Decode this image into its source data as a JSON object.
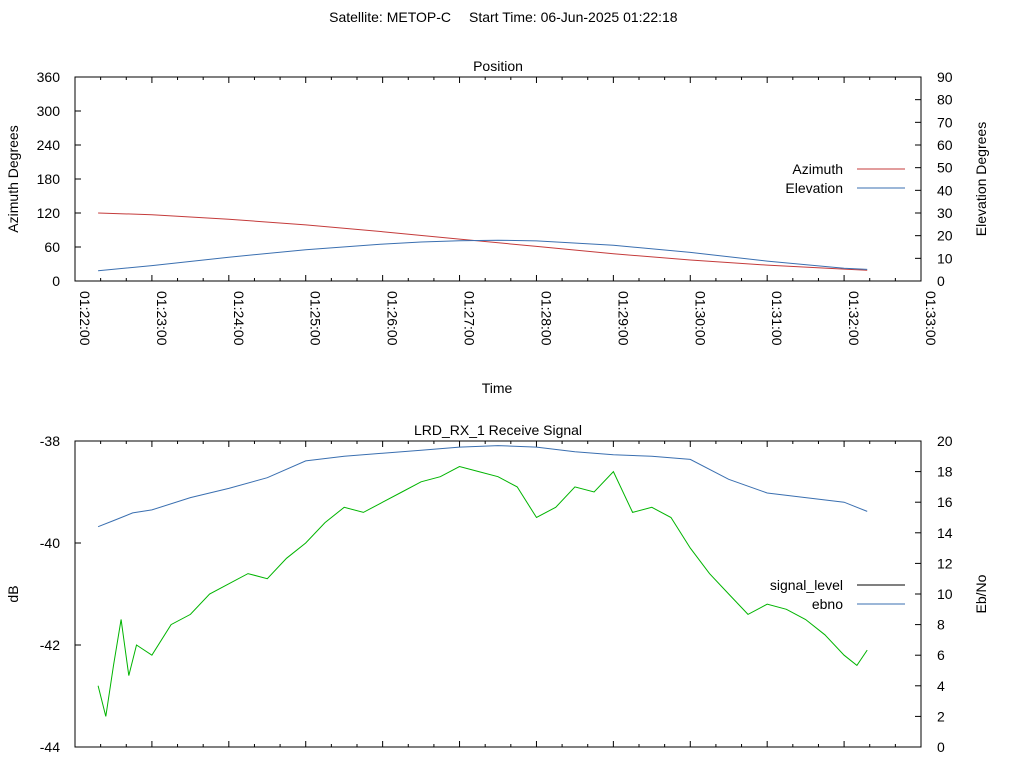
{
  "header": {
    "satellite": "Satellite: METOP-C",
    "start_time": "Start Time: 06-Jun-2025 01:22:18"
  },
  "colors": {
    "azimuth": "#c43b3b",
    "elevation": "#3a6fb0",
    "signal_level": "#00b400",
    "signal_level_legend": "#000000",
    "ebno": "#3a6fb0"
  },
  "chart_data": [
    {
      "type": "line",
      "title": "Position",
      "xlabel": "Time",
      "ylabel": "Azimuth Degrees",
      "y2label": "Elevation Degrees",
      "xlim": [
        "01:22:00",
        "01:33:00"
      ],
      "ylim": [
        0,
        360
      ],
      "y2lim": [
        0,
        90
      ],
      "x_ticks": [
        "01:22:00",
        "01:23:00",
        "01:24:00",
        "01:25:00",
        "01:26:00",
        "01:27:00",
        "01:28:00",
        "01:29:00",
        "01:30:00",
        "01:31:00",
        "01:32:00",
        "01:33:00"
      ],
      "y_ticks": [
        "0",
        "60",
        "120",
        "180",
        "240",
        "300",
        "360"
      ],
      "y2_ticks": [
        "0",
        "10",
        "20",
        "30",
        "40",
        "50",
        "60",
        "70",
        "80",
        "90"
      ],
      "legend": "right",
      "series": [
        {
          "name": "Azimuth",
          "axis": "y",
          "x": [
            "01:22:18",
            "01:23:00",
            "01:24:00",
            "01:25:00",
            "01:26:00",
            "01:27:00",
            "01:28:00",
            "01:29:00",
            "01:30:00",
            "01:31:00",
            "01:32:00",
            "01:32:18"
          ],
          "values": [
            120,
            117,
            109,
            99,
            87,
            74,
            61,
            48,
            37,
            28,
            21,
            19
          ]
        },
        {
          "name": "Elevation",
          "axis": "y2",
          "x": [
            "01:22:18",
            "01:23:00",
            "01:24:00",
            "01:25:00",
            "01:26:00",
            "01:26:30",
            "01:27:00",
            "01:27:30",
            "01:28:00",
            "01:29:00",
            "01:30:00",
            "01:31:00",
            "01:32:00",
            "01:32:18"
          ],
          "values": [
            4.5,
            6.8,
            10.5,
            13.8,
            16.3,
            17.2,
            17.8,
            18.0,
            17.7,
            15.8,
            12.6,
            8.8,
            5.6,
            5.1
          ]
        }
      ]
    },
    {
      "type": "line",
      "title": "LRD_RX_1 Receive Signal",
      "ylabel": "dB",
      "y2label": "Eb/No",
      "xlim": [
        "01:22:00",
        "01:33:00"
      ],
      "ylim": [
        -44,
        -38
      ],
      "y2lim": [
        0,
        20
      ],
      "y_ticks": [
        "-38",
        "-40",
        "-42",
        "-44"
      ],
      "y2_ticks": [
        "0",
        "2",
        "4",
        "6",
        "8",
        "10",
        "12",
        "14",
        "16",
        "18",
        "20"
      ],
      "legend": "right",
      "series": [
        {
          "name": "signal_level",
          "axis": "y",
          "x": [
            "01:22:18",
            "01:22:24",
            "01:22:30",
            "01:22:36",
            "01:22:42",
            "01:22:48",
            "01:23:00",
            "01:23:15",
            "01:23:30",
            "01:23:45",
            "01:24:00",
            "01:24:15",
            "01:24:30",
            "01:24:45",
            "01:25:00",
            "01:25:15",
            "01:25:30",
            "01:25:45",
            "01:26:00",
            "01:26:15",
            "01:26:30",
            "01:26:45",
            "01:27:00",
            "01:27:15",
            "01:27:30",
            "01:27:45",
            "01:28:00",
            "01:28:15",
            "01:28:30",
            "01:28:45",
            "01:29:00",
            "01:29:15",
            "01:29:30",
            "01:29:45",
            "01:30:00",
            "01:30:15",
            "01:30:30",
            "01:30:45",
            "01:31:00",
            "01:31:15",
            "01:31:30",
            "01:31:45",
            "01:32:00",
            "01:32:10",
            "01:32:18"
          ],
          "values": [
            -42.8,
            -43.4,
            -42.4,
            -41.5,
            -42.6,
            -42.0,
            -42.2,
            -41.6,
            -41.4,
            -41.0,
            -40.8,
            -40.6,
            -40.7,
            -40.3,
            -40.0,
            -39.6,
            -39.3,
            -39.4,
            -39.2,
            -39.0,
            -38.8,
            -38.7,
            -38.5,
            -38.6,
            -38.7,
            -38.9,
            -39.5,
            -39.3,
            -38.9,
            -39.0,
            -38.6,
            -39.4,
            -39.3,
            -39.5,
            -40.1,
            -40.6,
            -41.0,
            -41.4,
            -41.2,
            -41.3,
            -41.5,
            -41.8,
            -42.2,
            -42.4,
            -42.1
          ]
        },
        {
          "name": "ebno",
          "axis": "y2",
          "x": [
            "01:22:18",
            "01:22:30",
            "01:22:45",
            "01:23:00",
            "01:23:30",
            "01:24:00",
            "01:24:30",
            "01:25:00",
            "01:25:30",
            "01:26:00",
            "01:26:30",
            "01:27:00",
            "01:27:30",
            "01:28:00",
            "01:28:30",
            "01:29:00",
            "01:29:30",
            "01:30:00",
            "01:30:30",
            "01:31:00",
            "01:31:30",
            "01:32:00",
            "01:32:18"
          ],
          "values": [
            14.4,
            14.8,
            15.3,
            15.5,
            16.3,
            16.9,
            17.6,
            18.7,
            19.0,
            19.2,
            19.4,
            19.6,
            19.7,
            19.6,
            19.3,
            19.1,
            19.0,
            18.8,
            17.5,
            16.6,
            16.3,
            16.0,
            15.4
          ]
        }
      ]
    }
  ]
}
